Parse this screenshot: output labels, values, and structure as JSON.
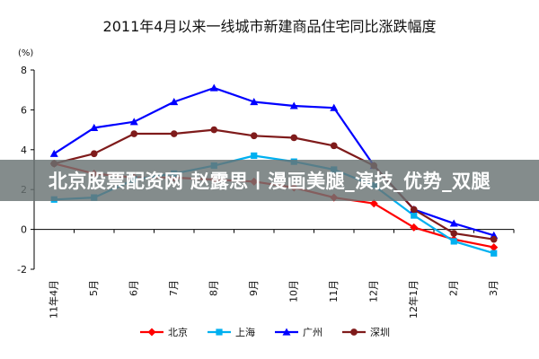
{
  "chart_data": {
    "type": "line",
    "title": "2011年4月以来一线城市新建商品住宅同比涨跌幅度",
    "yunit": "(%)",
    "categories": [
      "11年4月",
      "5月",
      "6月",
      "7月",
      "8月",
      "9月",
      "10月",
      "11月",
      "12月",
      "12年1月",
      "2月",
      "3月"
    ],
    "ylim": [
      -2,
      8
    ],
    "yticks": [
      -2,
      0,
      2,
      4,
      6,
      8
    ],
    "grid": false,
    "legend_position": "bottom",
    "series": [
      {
        "name": "北京",
        "color": "#ff0000",
        "marker": "diamond",
        "values": [
          3.3,
          2.8,
          2.6,
          2.6,
          2.5,
          2.4,
          2.1,
          1.6,
          1.3,
          0.1,
          -0.5,
          -0.9
        ]
      },
      {
        "name": "上海",
        "color": "#00b0f0",
        "marker": "square",
        "values": [
          1.5,
          1.6,
          2.5,
          2.8,
          3.2,
          3.7,
          3.4,
          3.0,
          2.2,
          0.7,
          -0.6,
          -1.2
        ]
      },
      {
        "name": "广州",
        "color": "#0000ff",
        "marker": "triangle",
        "values": [
          3.8,
          5.1,
          5.4,
          6.4,
          7.1,
          6.4,
          6.2,
          6.1,
          3.2,
          1.0,
          0.3,
          -0.3
        ]
      },
      {
        "name": "深圳",
        "color": "#7f1b1b",
        "marker": "circle",
        "values": [
          3.3,
          3.8,
          4.8,
          4.8,
          5.0,
          4.7,
          4.6,
          4.2,
          3.2,
          1.0,
          -0.2,
          -0.5
        ]
      }
    ]
  },
  "overlay": {
    "text": "北京股票配资网 赵露思丨漫画美腿_演技_优势_双腿"
  }
}
